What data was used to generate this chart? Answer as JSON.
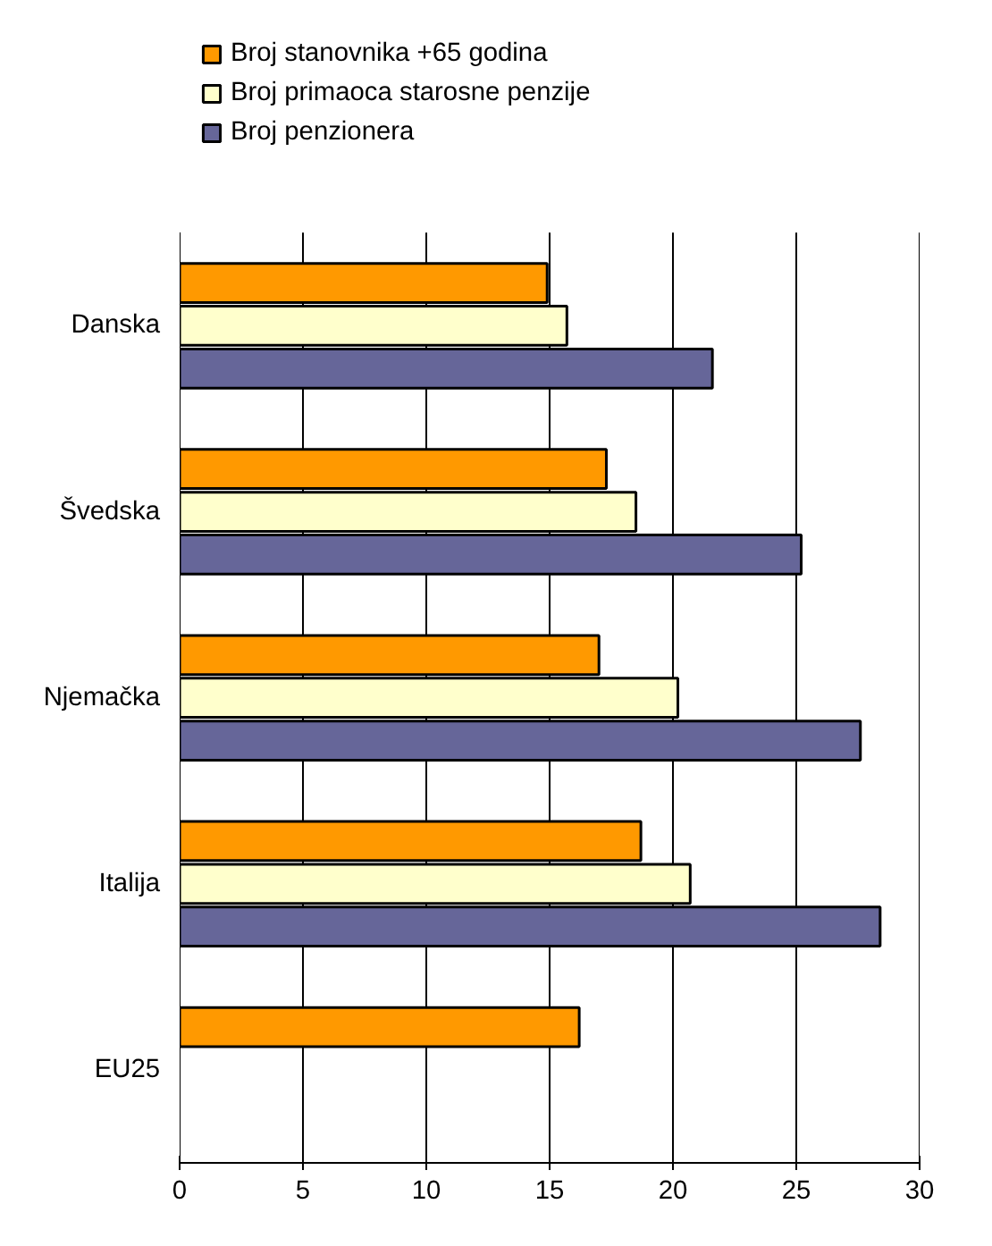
{
  "chart_data": {
    "type": "bar",
    "orientation": "horizontal",
    "categories": [
      "Danska",
      "Švedska",
      "Njemačka",
      "Italija",
      "EU25"
    ],
    "series": [
      {
        "name": "Broj stanovnika +65 godina",
        "color": "#ff9900",
        "values": [
          14.9,
          17.3,
          17.0,
          18.7,
          16.2
        ]
      },
      {
        "name": "Broj primaoca starosne penzije",
        "color": "#ffffcc",
        "values": [
          15.7,
          18.5,
          20.2,
          20.7,
          null
        ]
      },
      {
        "name": "Broj penzionera",
        "color": "#666699",
        "values": [
          21.6,
          25.2,
          27.6,
          28.4,
          null
        ]
      }
    ],
    "xlim": [
      0,
      30
    ],
    "xticks": [
      0,
      5,
      10,
      15,
      20,
      25,
      30
    ],
    "grid": "x",
    "legend": "top"
  }
}
